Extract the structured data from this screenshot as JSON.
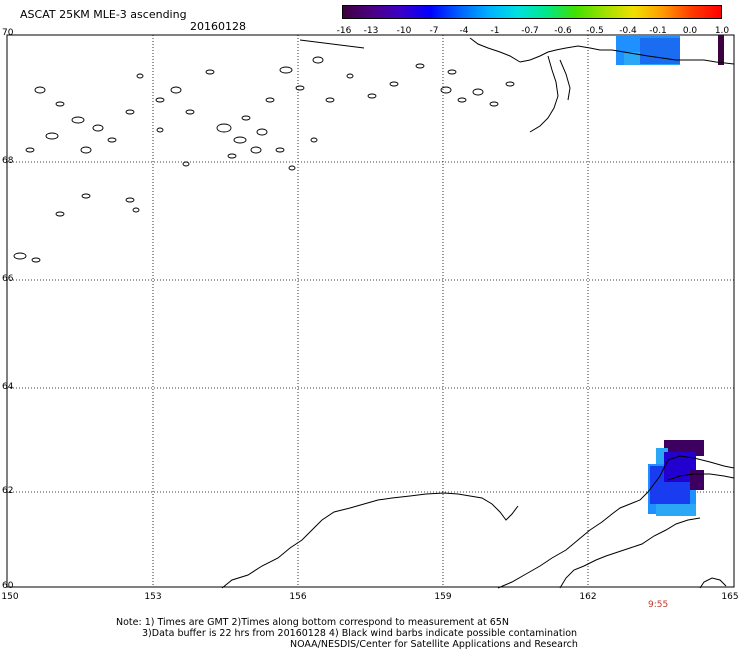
{
  "header": {
    "title": "ASCAT 25KM MLE-3 ascending",
    "date": "20160128"
  },
  "colorbar": {
    "labels": [
      "-16",
      "-13",
      "-10",
      "-7",
      "-4",
      "-1",
      "-0.7",
      "-0.6",
      "-0.5",
      "-0.4",
      "-0.1",
      "0.0",
      "1.0"
    ],
    "colors": [
      "#3d0040",
      "#4b0082",
      "#3a00c8",
      "#0000ff",
      "#0060ff",
      "#00b0ff",
      "#00e0e0",
      "#00e88a",
      "#40e000",
      "#a0e000",
      "#f0e000",
      "#ff9a00",
      "#ff3a00",
      "#ff0000"
    ]
  },
  "axes": {
    "lat_labels": [
      "70",
      "68",
      "66",
      "64",
      "62",
      "60"
    ],
    "lon_labels": [
      "150",
      "153",
      "156",
      "159",
      "162",
      "165"
    ],
    "lat_values": [
      70,
      68,
      66,
      64,
      62,
      60
    ],
    "lon_values": [
      150,
      153,
      156,
      159,
      162,
      165
    ]
  },
  "time_label": "9:55",
  "notes": [
    "Note: 1) Times are GMT 2)Times along bottom correspond to measurement at 65N",
    "3)Data buffer is 22 hrs from 20160128 4) Black wind barbs indicate possible contamination",
    "NOAA/NESDIS/Center for Satellite Applications and Research"
  ]
}
